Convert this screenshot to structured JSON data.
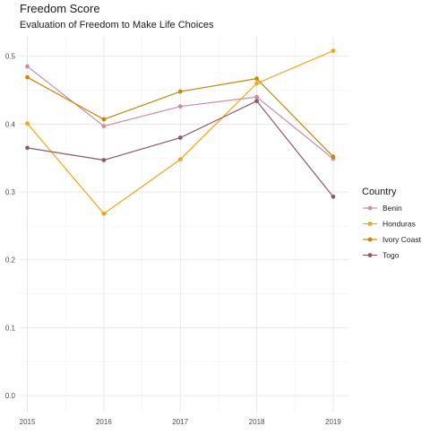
{
  "chart_data": {
    "type": "line",
    "title": "Freedom Score",
    "subtitle": "Evaluation of Freedom to Make Life Choices",
    "xlabel": "",
    "ylabel": "",
    "x": [
      2015,
      2016,
      2017,
      2018,
      2019
    ],
    "x_tick_labels": [
      "2015",
      "2016",
      "2017",
      "2018",
      "2019"
    ],
    "y_ticks": [
      0.0,
      0.1,
      0.2,
      0.3,
      0.4,
      0.5
    ],
    "y_tick_labels": [
      "0.0",
      "0.1",
      "0.2",
      "0.3",
      "0.4",
      "0.5"
    ],
    "xlim": [
      2014.9,
      2019.2
    ],
    "ylim": [
      -0.025,
      0.53
    ],
    "grid": true,
    "legend_position": "right",
    "legend_title": "Country",
    "series": [
      {
        "name": "Benin",
        "color": "#CC8CA8",
        "values": [
          0.485,
          0.397,
          0.426,
          0.44,
          0.349
        ]
      },
      {
        "name": "Honduras",
        "color": "#F5A514",
        "values": [
          0.401,
          0.268,
          0.348,
          0.46,
          0.508
        ]
      },
      {
        "name": "Ivory Coast",
        "color": "#C8860A",
        "values": [
          0.469,
          0.407,
          0.448,
          0.467,
          0.352
        ]
      },
      {
        "name": "Togo",
        "color": "#8C5A6E",
        "values": [
          0.365,
          0.347,
          0.38,
          0.434,
          0.293
        ]
      }
    ]
  }
}
